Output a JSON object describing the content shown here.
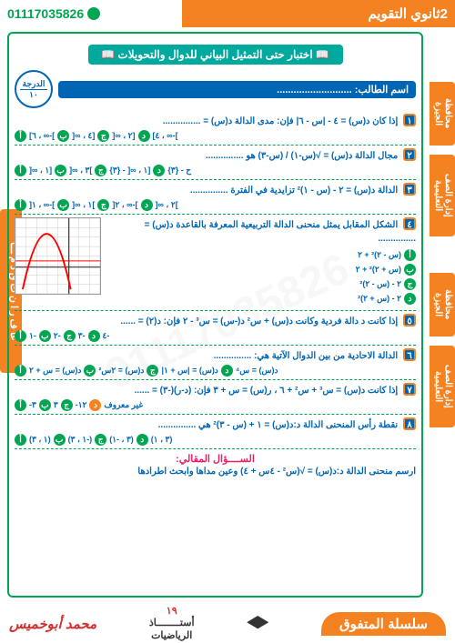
{
  "header": {
    "title": "2ثانوي التقويم",
    "phone": "01117035826"
  },
  "titleBand": "📖 اختبار حتى التمثيل البياني للدوال والتحويلات 📖",
  "studentLabel": "اسم الطالب:",
  "scoreLabel": "الدرجة",
  "scoreTotal": "١٠",
  "sideTabs": {
    "t1": "محافظة الجيزة",
    "t2": "إدارة الصف التعليمية",
    "t3": "محافظة الجيزة",
    "t4": "إدارة الصف التعليمية"
  },
  "leftTab": "عا ف ر ا ن ت ق د م ـــا",
  "questions": [
    {
      "num": "١",
      "text": "إذا كان د(س) = ٤ - |س - ٦|   فإن: مدى الدالة د(س) = ...............",
      "opts": [
        {
          "l": "أ",
          "t": "]-∞ ، ٦]"
        },
        {
          "l": "ب",
          "t": "[٤ ، ∞["
        },
        {
          "l": "ج",
          "t": "[٢ ، ∞["
        },
        {
          "l": "د",
          "t": "]-∞ ، ٤]"
        }
      ]
    },
    {
      "num": "٢",
      "text": "مجال الدالة د(س) = √(س-١) / (س-٣)  هو ...............",
      "opts": [
        {
          "l": "أ",
          "t": "[١ ، ∞["
        },
        {
          "l": "ب",
          "t": "]٣ ، ∞["
        },
        {
          "l": "ج",
          "t": "[١ ، ∞[ - {٣}"
        },
        {
          "l": "د",
          "t": "ح - {٣}"
        }
      ]
    },
    {
      "num": "٣",
      "text": "الدالة د(س) = ٢ - (س - ١)²  تزايدية في الفترة ...............",
      "opts": [
        {
          "l": "أ",
          "t": "]-∞ ، ١["
        },
        {
          "l": "ب",
          "t": "]١ ، ∞["
        },
        {
          "l": "ج",
          "t": "]-∞ ، ٢["
        },
        {
          "l": "د",
          "t": "]٢ ، ∞["
        }
      ]
    },
    {
      "num": "٤",
      "text": "الشكل المقابل يمثل منحنى الدالة التربيعية المعرفة بالقاعدة د(س) = ...............",
      "opts": [
        {
          "l": "أ",
          "t": "(س - ٢)² + ٢"
        },
        {
          "l": "ب",
          "t": "(س + ٢)² + ٢"
        },
        {
          "l": "ج",
          "t": "٢ - (س - ٢)²"
        },
        {
          "l": "د",
          "t": "٢ - (س + ٢)²"
        }
      ],
      "hasGraph": true
    },
    {
      "num": "٥",
      "text": "إذا كانت د دالة فردية وكانت د(س) + س² د(-س) = س³ - ٢ فإن: د(٢) = ......",
      "opts": [
        {
          "l": "أ",
          "t": "-١"
        },
        {
          "l": "ب",
          "t": "-٢"
        },
        {
          "l": "ج",
          "t": "-٣"
        },
        {
          "l": "د",
          "t": "-٤"
        }
      ]
    },
    {
      "num": "٦",
      "text": "الدالة الاحادية من بين الدوال الآتية هي: ...............",
      "opts": [
        {
          "l": "أ",
          "t": "د(س) = س + ٢"
        },
        {
          "l": "ب",
          "t": "د(س) = ٢س²"
        },
        {
          "l": "ج",
          "t": "د(س) = |س + ١|"
        },
        {
          "l": "د",
          "t": "د(س) = س⁴"
        }
      ]
    },
    {
      "num": "٧",
      "text": "إذا كانت د(س) = س³ + س² + ٦ ، ر(س) = س + ٣ فإن: (د-ر)(-٣) = ......",
      "opts": [
        {
          "l": "أ",
          "t": "٣-"
        },
        {
          "l": "ب",
          "t": "٣"
        },
        {
          "l": "ج",
          "t": "١٢-"
        },
        {
          "l": "د",
          "t": "غير معروف",
          "orange": true
        }
      ]
    },
    {
      "num": "٨",
      "text": "نقطة رأس المنحنى الدالة د:د(س) = ١ + (س - ٣)² هي ...............",
      "opts": [
        {
          "l": "أ",
          "t": "(١ ، ٣)"
        },
        {
          "l": "ب",
          "t": "(-١ ، ٣)"
        },
        {
          "l": "ج",
          "t": "(٣ ، -١)"
        },
        {
          "l": "د",
          "t": "(٣ ، ١)"
        }
      ]
    }
  ],
  "essay": {
    "title": "الســــؤال المقالي:",
    "text": "ارسم منحنى الدالة د:د(س) = √(س² - ٤س + ٤)  وعين مداها وابحث اطرادها"
  },
  "footer": {
    "series": "سلسلة المتفوق",
    "mid1": "أستــــــــاذ",
    "mid2": "الرياضيات",
    "author": "محمد أبوخميس",
    "page": "١٩"
  },
  "graph": {
    "bg": "#ffffff",
    "grid": "#cccccc",
    "axis": "#333333",
    "curve": "#ff0000",
    "vertex_x": -2,
    "vertex_y": 2,
    "xlim": [
      -5,
      3
    ],
    "ylim": [
      -3,
      3
    ],
    "line_y": 0.5
  }
}
